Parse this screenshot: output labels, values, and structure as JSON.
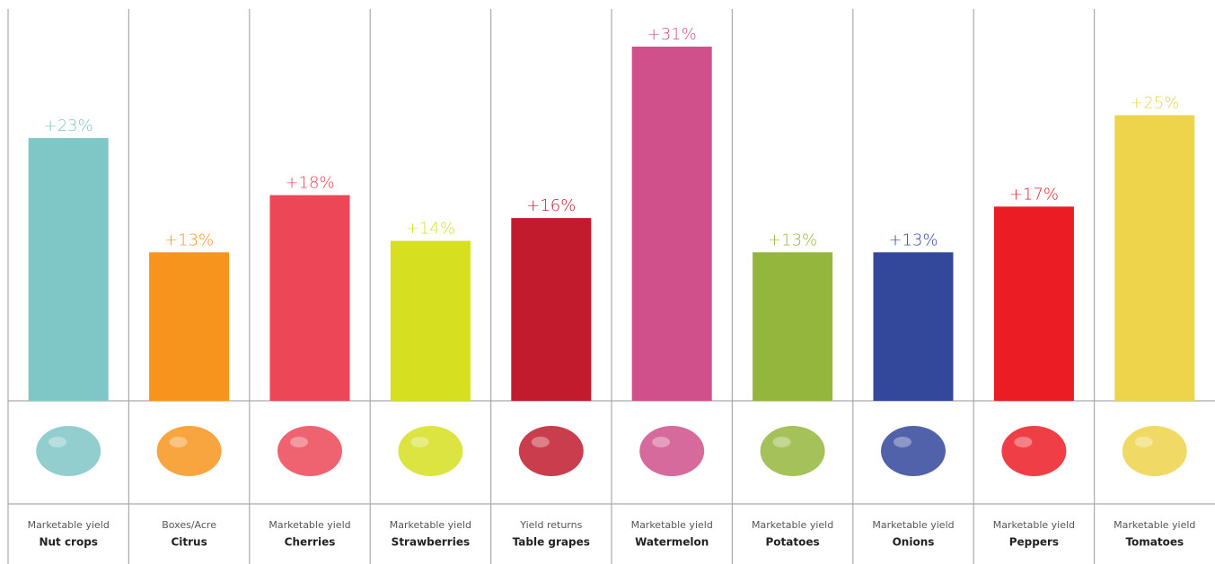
{
  "chart_data": {
    "type": "bar",
    "categories": [
      "Nut crops",
      "Citrus",
      "Cherries",
      "Strawberries",
      "Table grapes",
      "Watermelon",
      "Potatoes",
      "Onions",
      "Peppers",
      "Tomatoes"
    ],
    "metrics": [
      "Marketable yield",
      "Boxes/Acre",
      "Marketable yield",
      "Marketable yield",
      "Yield returns",
      "Marketable yield",
      "Marketable yield",
      "Marketable yield",
      "Marketable yield",
      "Marketable yield"
    ],
    "values": [
      23,
      13,
      18,
      14,
      16,
      31,
      13,
      13,
      17,
      25
    ],
    "value_labels": [
      "+23%",
      "+13%",
      "+18%",
      "+14%",
      "+16%",
      "+31%",
      "+13%",
      "+13%",
      "+17%",
      "+25%"
    ],
    "colors": [
      "#7fc6c6",
      "#f7941d",
      "#ec4657",
      "#d6df20",
      "#c11b2d",
      "#d0508b",
      "#95b63c",
      "#33479b",
      "#ec1c24",
      "#edd44a"
    ]
  }
}
